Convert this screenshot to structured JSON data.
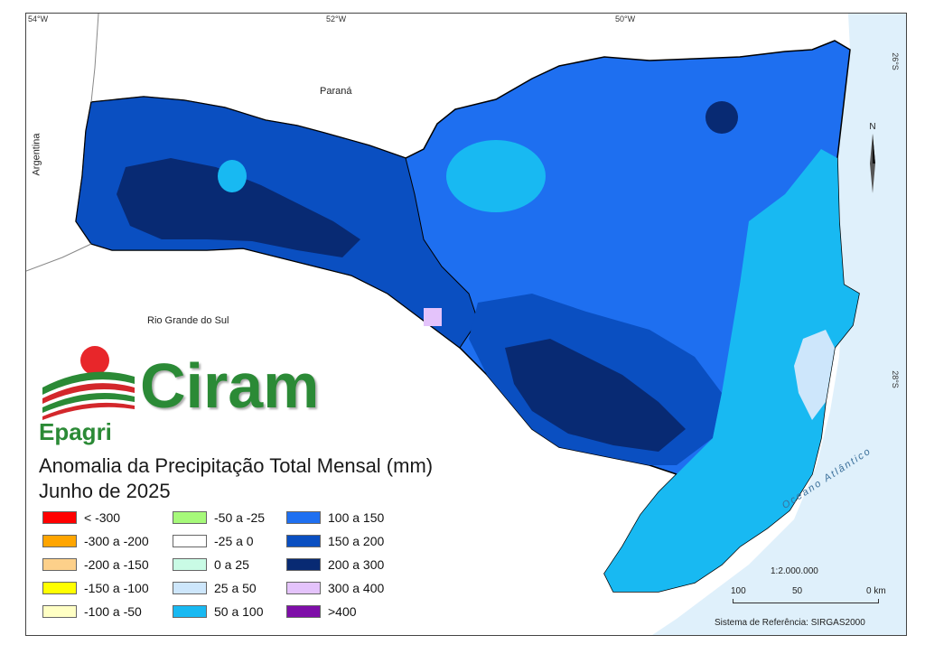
{
  "map": {
    "title": "Anomalia da Precipitação Total Mensal (mm)",
    "subtitle": "Junho de 2025",
    "longitude_ticks": [
      "54°W",
      "52°W",
      "50°W"
    ],
    "latitude_ticks": [
      "26°S",
      "28°S"
    ],
    "places": {
      "parana": "Paraná",
      "argentina": "Argentina",
      "rio_grande_do_sul": "Rio Grande do Sul",
      "ocean": "Oceano Atlântico"
    },
    "north_label": "N",
    "scale": {
      "ratio": "1:2.000.000",
      "labels": [
        "100",
        "50",
        "0 km"
      ]
    },
    "reference_system": "Sistema de Referência: SIRGAS2000",
    "logo": {
      "brand": "Ciram",
      "org": "Epagri",
      "colors": {
        "sun": "#e8262a",
        "green": "#2b8a36",
        "red_band": "#d3272b"
      }
    },
    "legend": [
      {
        "label": "< -300",
        "color": "#ff0000"
      },
      {
        "label": "-300 a -200",
        "color": "#ffa500"
      },
      {
        "label": "-200 a -150",
        "color": "#fdd08a"
      },
      {
        "label": "-150 a -100",
        "color": "#ffff00"
      },
      {
        "label": "-100 a -50",
        "color": "#ffffc4"
      },
      {
        "label": "-50 a -25",
        "color": "#a6f97a"
      },
      {
        "label": "-25 a 0",
        "color": "#ffffff"
      },
      {
        "label": "0 a 25",
        "color": "#c9fbe5"
      },
      {
        "label": "25 a 50",
        "color": "#cde6fb"
      },
      {
        "label": "50 a 100",
        "color": "#18b9f2"
      },
      {
        "label": "100 a 150",
        "color": "#1e6ff0"
      },
      {
        "label": "150 a 200",
        "color": "#0a4fc1"
      },
      {
        "label": "200 a 300",
        "color": "#082a73"
      },
      {
        "label": "300 a 400",
        "color": "#e4c3fb"
      },
      {
        "label": ">400",
        "color": "#7e0ea8"
      }
    ],
    "colors": {
      "ocean": "#dff0fb",
      "border": "#000000"
    }
  }
}
